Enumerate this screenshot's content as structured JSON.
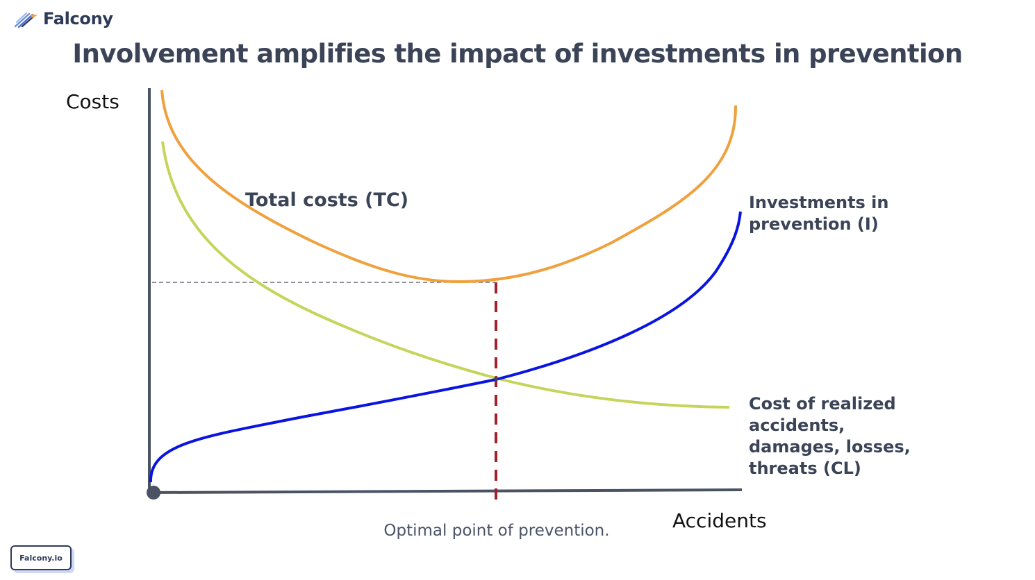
{
  "brand": {
    "name": "Falcony",
    "logo_icon": "falcon-feather-logo-icon",
    "site_label": "Falcony.io"
  },
  "title": "Involvement amplifies the impact of investments in prevention",
  "diagram": {
    "y_axis_label": "Costs",
    "x_axis_label": "Accidents",
    "caption": "Optimal point of prevention.",
    "curves": {
      "total_costs": {
        "label": "Total costs (TC)",
        "color": "#f0a03c"
      },
      "investments": {
        "label": "Investments in\nprevention (I)",
        "color": "#0a14e0"
      },
      "realized_accidents": {
        "label": "Cost of realized\naccidents,\ndamages, losses,\nthreats (CL)",
        "color": "#c5d45a"
      }
    },
    "colors": {
      "axis": "#4a5263",
      "optimal_line": "#a0222a",
      "guide_line": "#4a5263"
    }
  }
}
